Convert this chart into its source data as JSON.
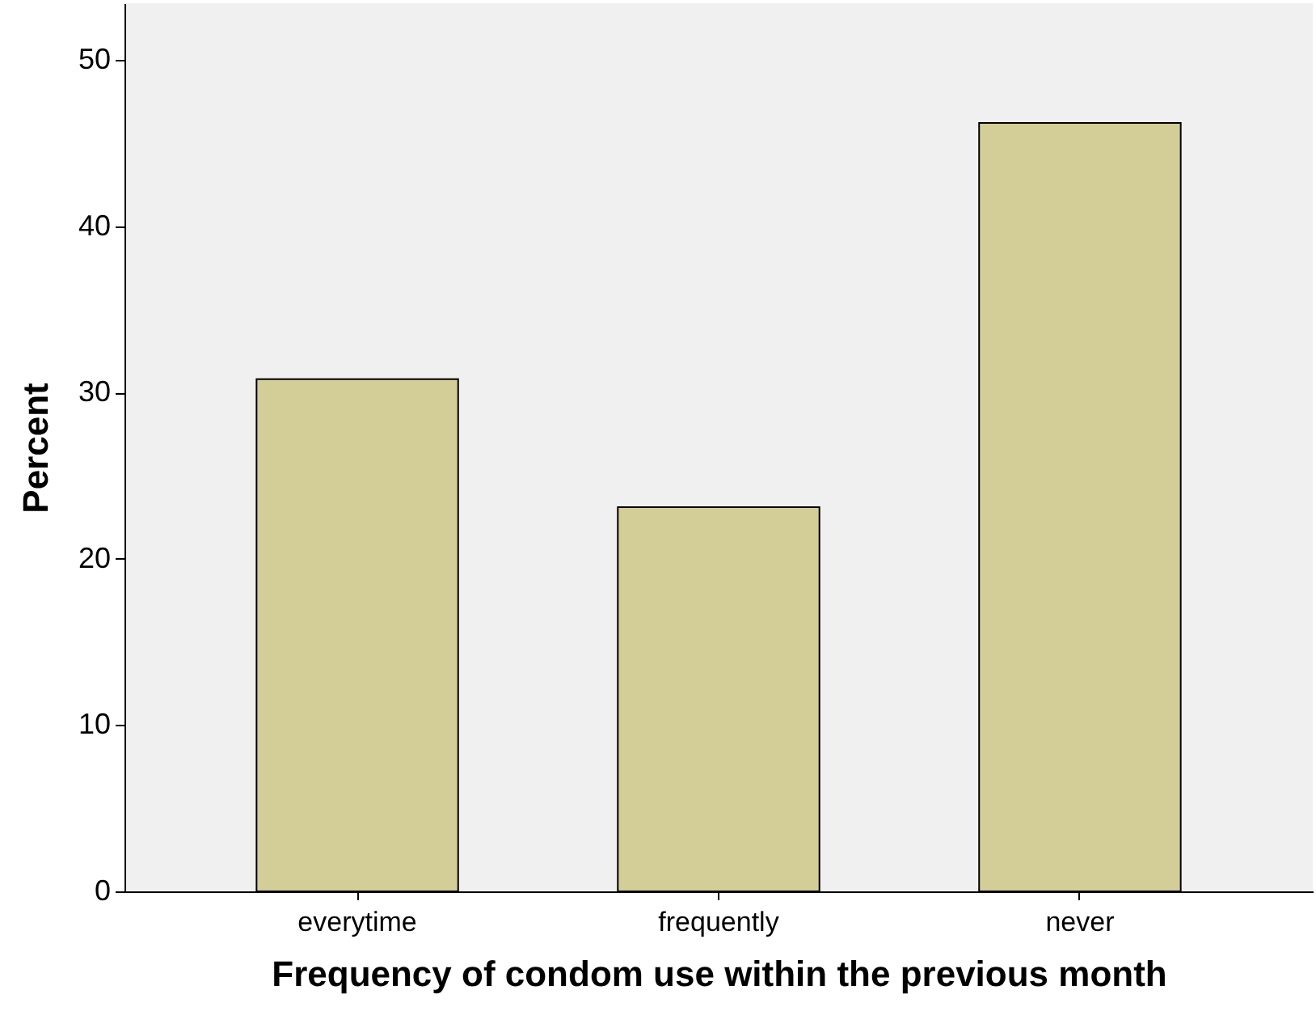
{
  "chart_data": {
    "type": "bar",
    "xlabel": "Frequency of condom use within the previous month",
    "ylabel": "Percent",
    "categories": [
      "everytime",
      "frequently",
      "never"
    ],
    "values": [
      30.8,
      23.1,
      46.2
    ],
    "color": "#d3cd98",
    "ylim": [
      0,
      53.4
    ],
    "yticks": [
      0,
      10,
      20,
      30,
      40,
      50
    ],
    "grid": false
  }
}
